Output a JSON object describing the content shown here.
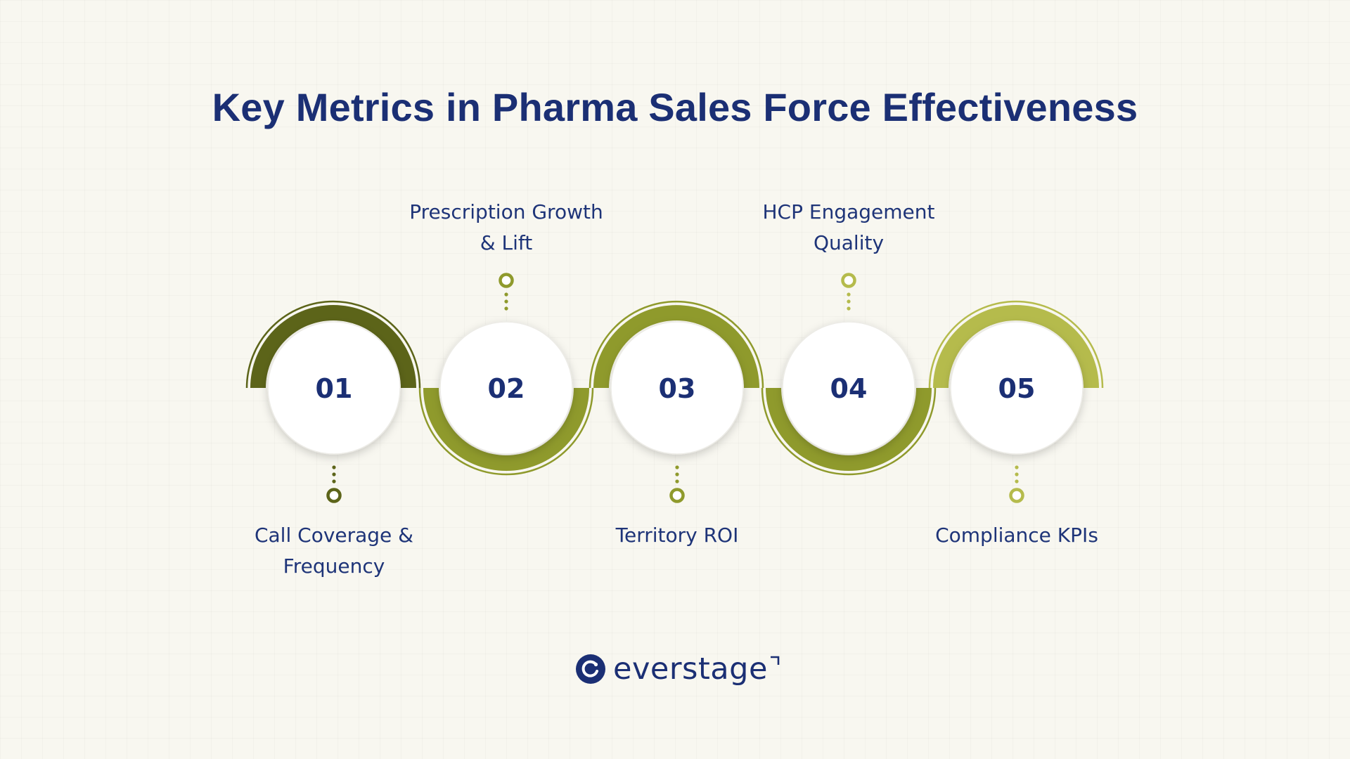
{
  "title": "Key Metrics in Pharma Sales Force Effectiveness",
  "colors": {
    "navy": "#1b2f74",
    "olive_dark": "#5c6419",
    "olive_mid": "#8f9a2c",
    "olive_light": "#b5bb4c",
    "background": "#f8f7f0"
  },
  "steps": [
    {
      "number": "01",
      "label_lines": [
        "Call Coverage &",
        "Frequency"
      ],
      "label_side": "bottom"
    },
    {
      "number": "02",
      "label_lines": [
        "Prescription Growth",
        "& Lift"
      ],
      "label_side": "top"
    },
    {
      "number": "03",
      "label_lines": [
        "Territory ROI"
      ],
      "label_side": "bottom"
    },
    {
      "number": "04",
      "label_lines": [
        "HCP Engagement",
        "Quality"
      ],
      "label_side": "top"
    },
    {
      "number": "05",
      "label_lines": [
        "Compliance KPIs"
      ],
      "label_side": "bottom"
    }
  ],
  "logo": {
    "text": "everstage",
    "icon": "everstage-logo-icon"
  }
}
